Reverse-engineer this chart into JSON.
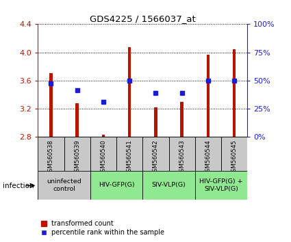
{
  "title": "GDS4225 / 1566037_at",
  "samples": [
    "GSM560538",
    "GSM560539",
    "GSM560540",
    "GSM560541",
    "GSM560542",
    "GSM560543",
    "GSM560544",
    "GSM560545"
  ],
  "bar_values": [
    3.7,
    3.28,
    2.83,
    4.07,
    3.22,
    3.3,
    3.97,
    4.04
  ],
  "dot_values": [
    3.56,
    3.46,
    3.3,
    3.6,
    3.42,
    3.42,
    3.6,
    3.6
  ],
  "ylim": [
    2.8,
    4.4
  ],
  "yticks": [
    2.8,
    3.2,
    3.6,
    4.0,
    4.4
  ],
  "y2lim": [
    0,
    100
  ],
  "y2ticks": [
    0,
    25,
    50,
    75,
    100
  ],
  "bar_color": "#b81400",
  "dot_color": "#1c1cd8",
  "groups": [
    {
      "label": "uninfected\ncontrol",
      "start": 0,
      "end": 2,
      "color": "#c8c8c8"
    },
    {
      "label": "HIV-GFP(G)",
      "start": 2,
      "end": 4,
      "color": "#90e890"
    },
    {
      "label": "SIV-VLP(G)",
      "start": 4,
      "end": 6,
      "color": "#90e890"
    },
    {
      "label": "HIV-GFP(G) +\nSIV-VLP(G)",
      "start": 6,
      "end": 8,
      "color": "#90e890"
    }
  ],
  "sample_area_color": "#c8c8c8",
  "infection_label": "infection",
  "legend_bar_label": "transformed count",
  "legend_dot_label": "percentile rank within the sample"
}
